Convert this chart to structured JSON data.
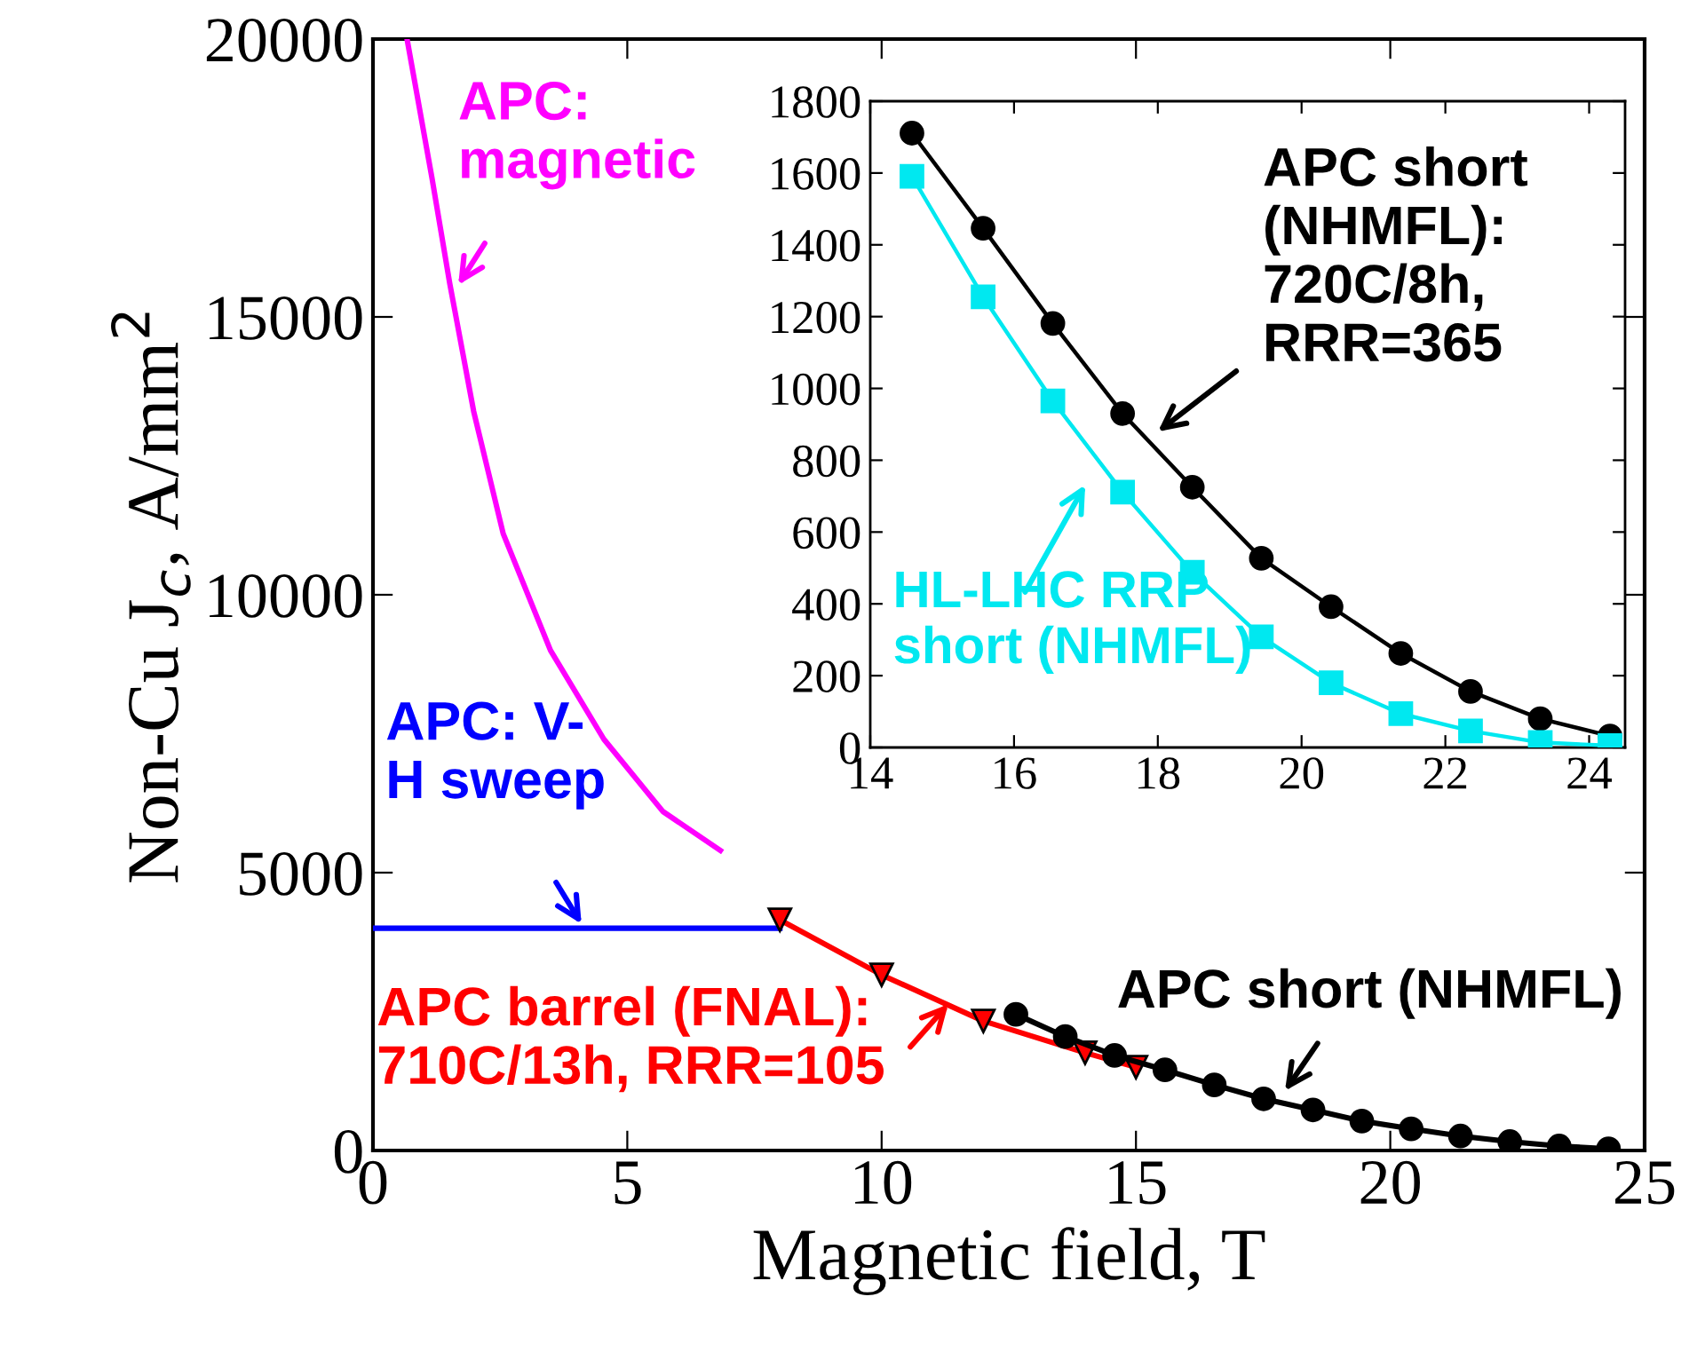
{
  "chart_data": [
    {
      "type": "line",
      "xlabel": "Magnetic field, T",
      "ylabel": "Non-Cu J$_{c}$, A/mm$^{2}$",
      "xlim": [
        0,
        25
      ],
      "ylim": [
        0,
        20000
      ],
      "xticks": [
        0,
        5,
        10,
        15,
        20,
        25
      ],
      "yticks": [
        0,
        5000,
        10000,
        15000,
        20000
      ],
      "grid": false,
      "legend": "left",
      "series": [
        {
          "name": "APC:\nmagnetic",
          "color": "#ff00ff",
          "marker": "none",
          "x": [
            0.67,
            1.16,
            1.51,
            1.98,
            2.56,
            3.49,
            4.54,
            5.7,
            6.83
          ],
          "values": [
            20000,
            17500,
            15600,
            13300,
            11100,
            9000,
            7400,
            6100,
            5400
          ]
        },
        {
          "name": "APC: V-\nH sweep",
          "color": "#0000ff",
          "marker": "none",
          "x": [
            0,
            8
          ],
          "values": [
            4000,
            4000
          ]
        },
        {
          "name": "APC barrel (FNAL):\n710C/13h, RRR=105",
          "color": "#ff0000",
          "marker": "triangle",
          "x": [
            8,
            10,
            12,
            14,
            15
          ],
          "values": [
            4150,
            3160,
            2330,
            1760,
            1500
          ]
        },
        {
          "name": "APC short (NHMFL)",
          "color": "#000000",
          "marker": "circle",
          "x": [
            12.64,
            13.61,
            14.58,
            15.57,
            16.54,
            17.51,
            18.48,
            19.44,
            20.41,
            21.38,
            22.35,
            23.32,
            24.29
          ],
          "values": [
            2450,
            2050,
            1710,
            1450,
            1180,
            930,
            730,
            530,
            390,
            260,
            160,
            80,
            30
          ]
        }
      ]
    },
    {
      "type": "line",
      "xlim": [
        14,
        24.5
      ],
      "ylim": [
        0,
        1800
      ],
      "xticks": [
        14,
        16,
        18,
        20,
        22,
        24
      ],
      "yticks": [
        0,
        200,
        400,
        600,
        800,
        1000,
        1200,
        1400,
        1600,
        1800
      ],
      "grid": false,
      "legend": "top right",
      "series": [
        {
          "name": "APC short\n(NHMFL):\n720C/8h,\nRRR=365",
          "color": "#000000",
          "marker": "circle",
          "x": [
            14.58,
            15.57,
            16.54,
            17.51,
            18.48,
            19.44,
            20.41,
            21.38,
            22.35,
            23.32,
            24.29
          ],
          "values": [
            1711,
            1446,
            1181,
            930,
            725,
            527,
            392,
            262,
            156,
            80,
            32
          ]
        },
        {
          "name": "HL-LHC RRP\nshort (NHMFL)",
          "color": "#00e8f0",
          "marker": "square",
          "x": [
            14.58,
            15.57,
            16.54,
            17.51,
            18.48,
            19.44,
            20.41,
            21.38,
            22.35,
            23.32,
            24.29
          ],
          "values": [
            1591,
            1255,
            965,
            711,
            488,
            308,
            180,
            94,
            46,
            14,
            5
          ]
        }
      ]
    }
  ]
}
